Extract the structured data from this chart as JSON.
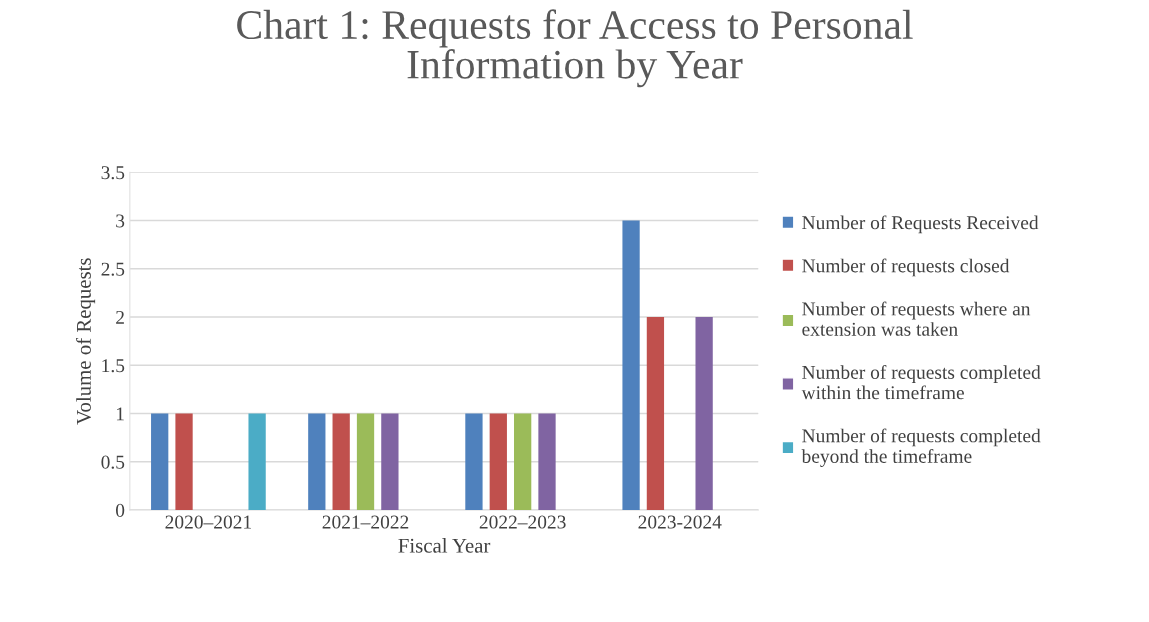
{
  "chart_data": {
    "type": "bar",
    "title": "Chart 1: Requests for Access to Personal\nInformation by Year",
    "xlabel": "Fiscal Year",
    "ylabel": "Volume of Requests",
    "categories": [
      "2020–2021",
      "2021–2022",
      "2022–2023",
      "2023-2024"
    ],
    "series": [
      {
        "name": "Number of Requests Received",
        "color": "#4f81bd",
        "values": [
          1,
          1,
          1,
          3
        ]
      },
      {
        "name": "Number of requests closed",
        "color": "#c0504d",
        "values": [
          1,
          1,
          1,
          2
        ]
      },
      {
        "name": "Number of requests where an\nextension was taken",
        "color": "#9bbb59",
        "values": [
          null,
          1,
          1,
          null
        ]
      },
      {
        "name": "Number of requests completed\nwithin the timeframe",
        "color": "#8064a2",
        "values": [
          null,
          1,
          1,
          2
        ]
      },
      {
        "name": "Number of requests completed\nbeyond the timeframe",
        "color": "#4bacc6",
        "values": [
          1,
          null,
          null,
          null
        ]
      }
    ],
    "ylim": [
      0,
      3.5
    ],
    "yticks": [
      0,
      0.5,
      1,
      1.5,
      2,
      2.5,
      3,
      3.5
    ],
    "grid": "y",
    "legend": "right"
  }
}
